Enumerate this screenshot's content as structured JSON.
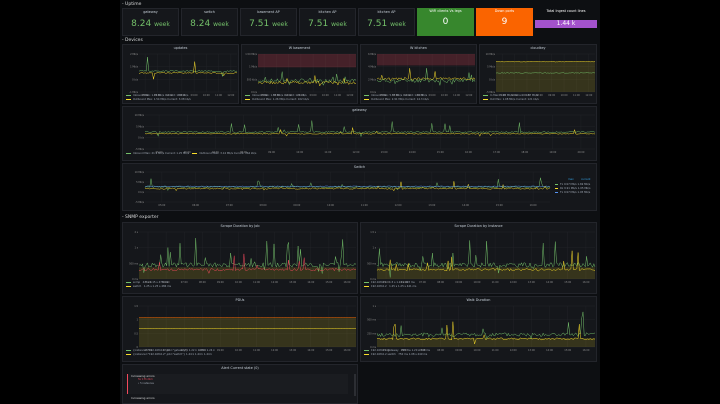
{
  "rows": {
    "uptime": "- Uptime",
    "devices": "- Devices",
    "snmp": "- SNMP exporter"
  },
  "stats": [
    {
      "title": "gateway",
      "value": "8.24",
      "unit": "week",
      "color": "#73bf69",
      "bg": "none"
    },
    {
      "title": "switch",
      "value": "8.24",
      "unit": "week",
      "color": "#73bf69",
      "bg": "none"
    },
    {
      "title": "basement AP",
      "value": "7.51",
      "unit": "week",
      "color": "#73bf69",
      "bg": "none"
    },
    {
      "title": "kitchen AP",
      "value": "7.51",
      "unit": "week",
      "color": "#73bf69",
      "bg": "none"
    },
    {
      "title": "kitchen AP",
      "value": "7.51",
      "unit": "week",
      "color": "#73bf69",
      "bg": "none"
    },
    {
      "title": "WiFi clients Vs legs",
      "value": "0",
      "unit": "",
      "color": "#ffffff",
      "bg": "#37872d"
    },
    {
      "title": "Down ports",
      "value": "9",
      "unit": "",
      "color": "#ffffff",
      "bg": "#fa6400"
    },
    {
      "title": "Total Ingest count lines",
      "value": "1.44 k",
      "unit": "",
      "color": "#ffffff",
      "bg": "#a352cc"
    }
  ],
  "device_panels": [
    {
      "title": "updates",
      "yticks": [
        "2 Mb/s",
        "1 Mb/s",
        "0 b/s",
        "-1 Mb/s"
      ],
      "legend": [
        "Inbound  Max: 1.76 Mb/s  Current: 18.8 kb/s",
        "Outbound  Max: 1.54 Mb/s  Current: 3.08 kb/s"
      ]
    },
    {
      "title": "W basement",
      "yticks": [
        "1.50 Mb/s",
        "1 Mb/s",
        "500 kb/s",
        "0 b/s"
      ],
      "legend": [
        "Inbound  Max: 1.35 Mb/s  Current: 121 kb/s",
        "Outbound  Max: 1.26 Mb/s  Current: 102 kb/s"
      ]
    },
    {
      "title": "W kitchen",
      "yticks": [
        "6 Mb/s",
        "4 Mb/s",
        "2 Mb/s",
        "0 b/s"
      ],
      "legend": [
        "Inbound  Max: 5.37 Mb/s  Current: 1.62 Mb/s",
        "Outbound  Max: 2.91 Mb/s  Current: 14.3 kb/s"
      ]
    },
    {
      "title": "cloudkey",
      "yticks": [
        "10 Mb/s",
        "5 Mb/s",
        "0 b/s",
        "-5 Mb/s"
      ],
      "legend": [
        "In  Max: 9.98 Mb/s  Current: 4.87 Mb/s",
        "Out  Max: 1.08 Mb/s  Current: 121 kb/s"
      ]
    }
  ],
  "gateway": {
    "title": "gateway",
    "yticks": [
      "10 Mb/s",
      "5 Mb/s",
      "0 b/s",
      "-5 Mb/s"
    ],
    "legend": [
      "Inbound  Max: 21.9 Mb/s  Current: 1.25 Mb/s",
      "Outbound  Max: 3.14 Mb/s  Current: 264 kb/s"
    ]
  },
  "switch": {
    "title": "Switch",
    "yticks": [
      "10 Mb/s",
      "5 Mb/s",
      "0 b/s",
      "-5 Mb/s"
    ],
    "legend_head": [
      "max",
      "current"
    ],
    "legend": [
      [
        "Tx",
        "9.97 Mb/s",
        "1.69 Mb/s"
      ],
      [
        "Rx",
        "9.91 Mb/s",
        "1.05 Mb/s"
      ],
      [
        "Tx",
        "9.97 Mb/s",
        "1.05 Mb/s"
      ]
    ]
  },
  "snmp_panels": [
    {
      "title": "Scrape Duration by Job",
      "yticks": [
        "2 s",
        "1 s",
        "500 ms",
        "0 ms"
      ],
      "legend": [
        [
          "snmp",
          "4.5 s",
          "1.15 s",
          "478 ms"
        ],
        [
          "switch",
          "1.25 s",
          "1.25 s",
          "486 ms"
        ]
      ]
    },
    {
      "title": "Scrape Duration by Instance",
      "yticks": [
        "1.5 s",
        "1 s",
        "500 ms",
        "0 ms"
      ],
      "legend": [
        [
          "192.168.0.1",
          "1.5 s",
          "1.22 s",
          "493 ms"
        ],
        [
          "192.168.0.2",
          "1.25 s",
          "1.25 s",
          "441 ms"
        ]
      ]
    },
    {
      "title": "PDUs",
      "yticks": [
        "1.5",
        "1",
        "0.5",
        "0"
      ],
      "legend": [
        [
          "{instance=\"192.168.0.1\",job=\"gateway\"}",
          "1.22 k",
          "1.28 k",
          "1.24 k"
        ],
        [
          "{instance=\"192.168.0.2\",job=\"switch\"}",
          "1.44 k",
          "1.44 k",
          "1.44 k"
        ]
      ]
    },
    {
      "title": "Walk Duration",
      "yticks": [
        "1 s",
        "500 ms",
        "250 ms",
        "0 ms"
      ],
      "legend": [
        [
          "192.168.0.1 gateway",
          "795 ms",
          "1.20 s",
          "393 ms"
        ],
        [
          "192.168.0.2 switch",
          "750 ms",
          "1.08 s",
          "449 ms"
        ]
      ]
    }
  ],
  "alert": {
    "title": "Alert Current state (0)",
    "items": [
      "Increasing errors",
      "for 17h 21m",
      "• 5 instances",
      "Increasing errors"
    ]
  },
  "time_ticks": [
    "05:00",
    "06:00",
    "07:00",
    "08:00",
    "09:00",
    "10:00",
    "11:00",
    "12:00",
    "13:00",
    "14:00",
    "15:00",
    "16:00",
    "17:00",
    "18:00",
    "19:00",
    "20:00"
  ],
  "colors": {
    "green": "#73bf69",
    "yellow": "#fade2a",
    "red": "#f2495c",
    "orange": "#fa6400",
    "purple": "#a352cc",
    "blue": "#5794f2"
  }
}
